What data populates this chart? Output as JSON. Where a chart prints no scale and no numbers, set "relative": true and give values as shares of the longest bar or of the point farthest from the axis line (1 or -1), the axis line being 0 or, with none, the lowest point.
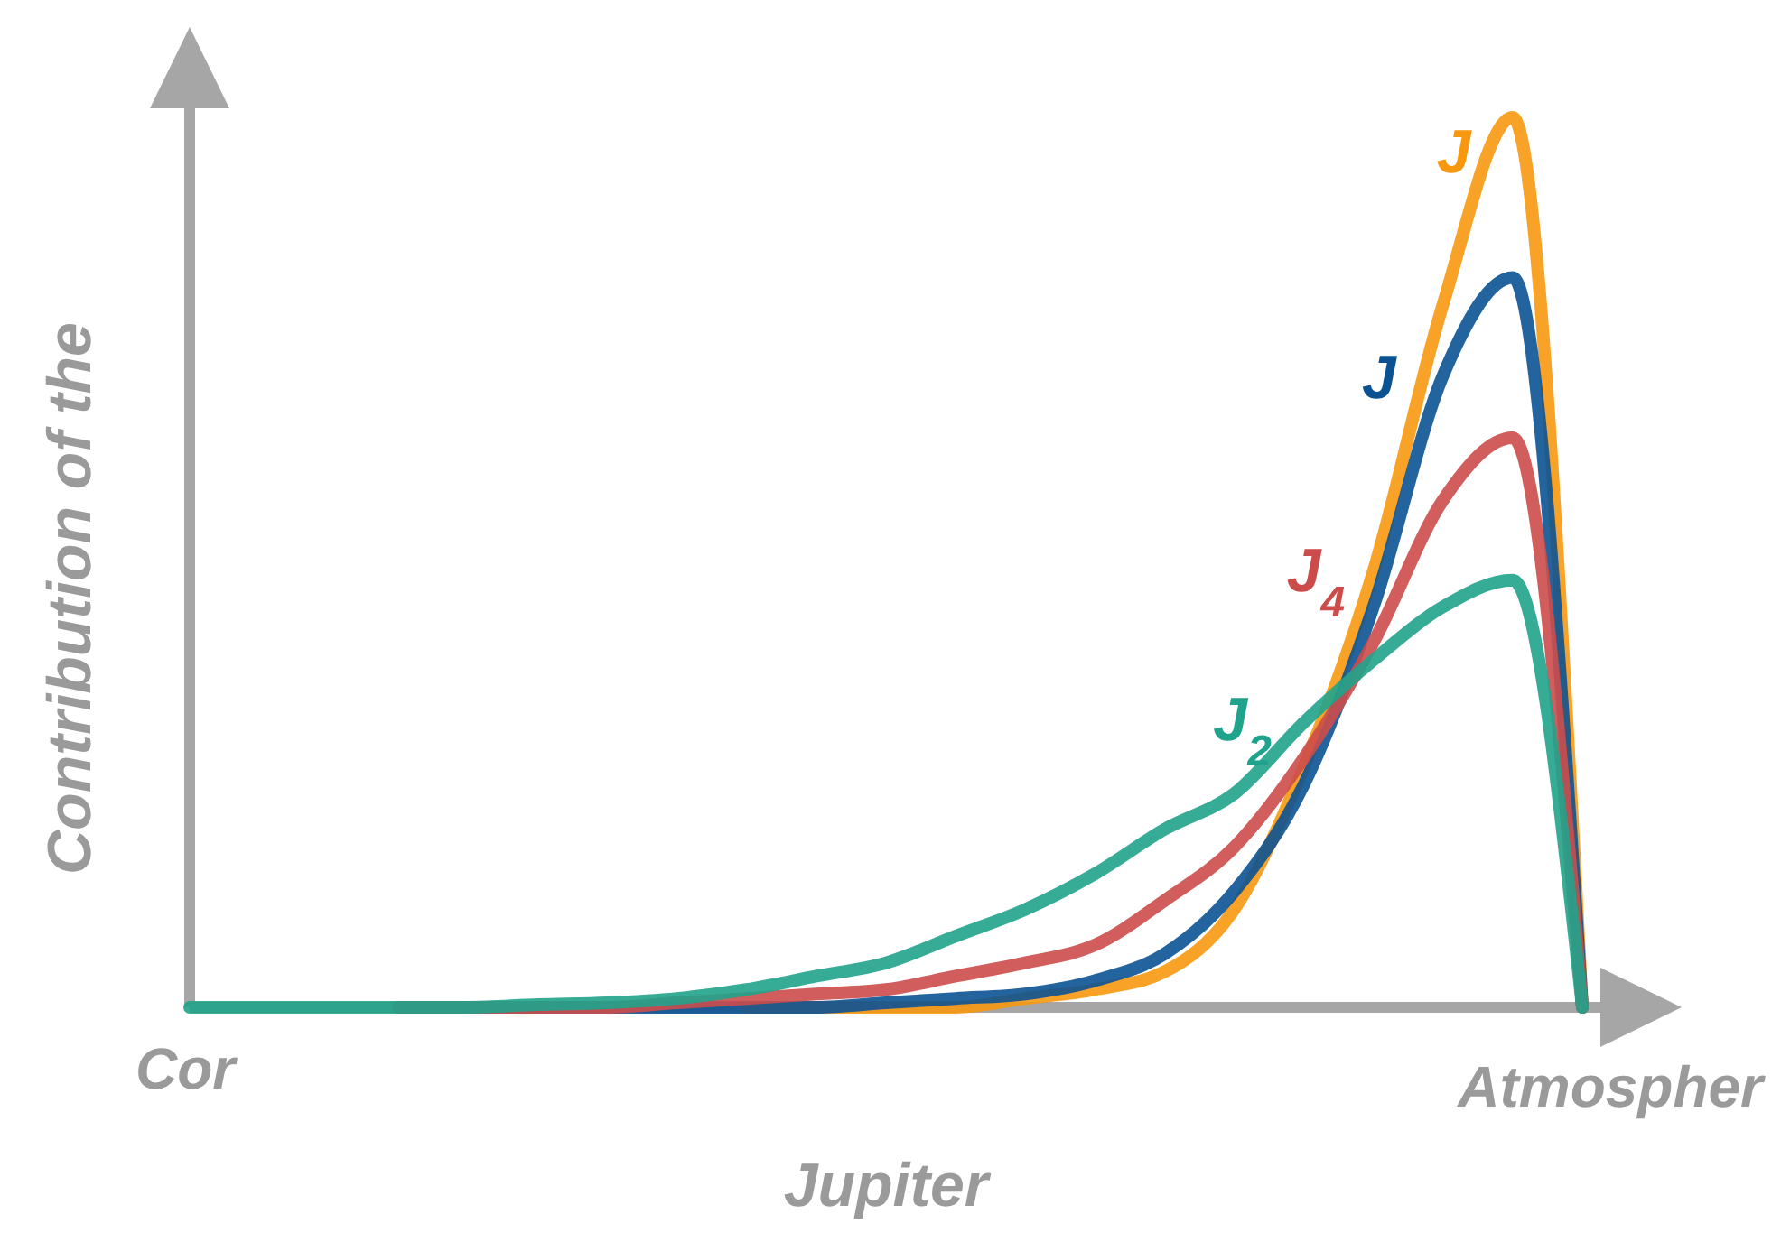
{
  "chart_data": {
    "type": "line",
    "relative": true,
    "xlabel": "Jupiter",
    "ylabel": "Contribution of the",
    "annotations": [
      "Cor",
      "Atmospher"
    ],
    "legend": false,
    "grid": false,
    "marker": "none",
    "line_style": "solid",
    "categories": [
      null,
      null,
      null,
      null,
      null,
      null,
      null,
      null,
      null,
      null,
      null,
      null,
      null,
      null,
      null,
      null,
      null,
      null,
      null,
      null,
      null
    ],
    "series": [
      {
        "name": "J",
        "color": "#f7980f",
        "values": [
          null,
          null,
          null,
          null,
          null,
          null,
          null,
          null,
          0,
          0,
          0,
          0,
          0.01,
          0.02,
          0.04,
          0.11,
          0.27,
          0.49,
          0.79,
          1,
          0
        ]
      },
      {
        "name": "J",
        "color": "#0b5293",
        "values": [
          null,
          null,
          null,
          0,
          0,
          0,
          0,
          0,
          0,
          0,
          0.005,
          0.01,
          0.015,
          0.03,
          0.06,
          0.13,
          0.25,
          0.45,
          0.71,
          0.82,
          0
        ]
      },
      {
        "name": "J$_{4}$",
        "color": "#cc4c4b",
        "values": [
          null,
          null,
          null,
          0,
          0,
          0,
          0,
          0.005,
          0.01,
          0.015,
          0.02,
          0.035,
          0.05,
          0.07,
          0.12,
          0.18,
          0.28,
          0.41,
          0.57,
          0.64,
          0
        ]
      },
      {
        "name": "J$_{2}$",
        "color": "#20a38c",
        "values": [
          0,
          0,
          0,
          0,
          0,
          0.003,
          0.005,
          0.01,
          0.02,
          0.035,
          0.05,
          0.08,
          0.11,
          0.15,
          0.2,
          0.24,
          0.32,
          0.39,
          0.45,
          0.48,
          0
        ]
      }
    ]
  }
}
